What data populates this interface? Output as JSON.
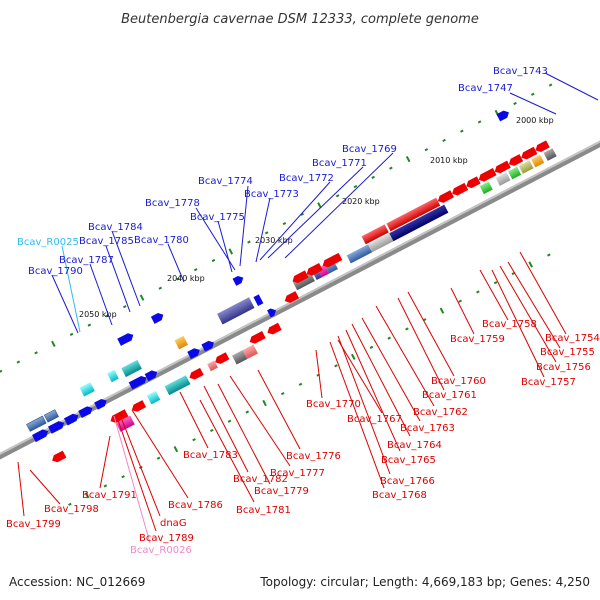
{
  "title": "Beutenbergia cavernae DSM 12333, complete genome",
  "footer": {
    "accession": "Accession: NC_012669",
    "summary": "Topology: circular; Length: 4,669,183 bp; Genes: 4,250"
  },
  "scale_labels": [
    {
      "id": "2000",
      "text": "2000 kbp"
    },
    {
      "id": "2010",
      "text": "2010 kbp"
    },
    {
      "id": "2020",
      "text": "2020 kbp"
    },
    {
      "id": "2030",
      "text": "2030 kbp"
    },
    {
      "id": "2040",
      "text": "2040 kbp"
    },
    {
      "id": "2050",
      "text": "2050 kbp"
    }
  ],
  "gene_labels_top": [
    {
      "id": "bcav1743",
      "text": "Bcav_1743",
      "color": "#1a1ad2"
    },
    {
      "id": "bcav1747",
      "text": "Bcav_1747",
      "color": "#1a1ad2"
    },
    {
      "id": "bcav1769",
      "text": "Bcav_1769",
      "color": "#1a1ad2"
    },
    {
      "id": "bcav1771",
      "text": "Bcav_1771",
      "color": "#1a1ad2"
    },
    {
      "id": "bcav1772",
      "text": "Bcav_1772",
      "color": "#1a1ad2"
    },
    {
      "id": "bcav1774",
      "text": "Bcav_1774",
      "color": "#1a1ad2"
    },
    {
      "id": "bcav1773",
      "text": "Bcav_1773",
      "color": "#1a1ad2"
    },
    {
      "id": "bcav1778",
      "text": "Bcav_1778",
      "color": "#1a1ad2"
    },
    {
      "id": "bcav1775",
      "text": "Bcav_1775",
      "color": "#1a1ad2"
    },
    {
      "id": "bcav1784",
      "text": "Bcav_1784",
      "color": "#1a1ad2"
    },
    {
      "id": "bcavR0025",
      "text": "Bcav_R0025",
      "color": "#33bbee"
    },
    {
      "id": "bcav1785",
      "text": "Bcav_1785",
      "color": "#1a1ad2"
    },
    {
      "id": "bcav1780",
      "text": "Bcav_1780",
      "color": "#1a1ad2"
    },
    {
      "id": "bcav1787",
      "text": "Bcav_1787",
      "color": "#1a1ad2"
    },
    {
      "id": "bcav1790",
      "text": "Bcav_1790",
      "color": "#1a1ad2"
    }
  ],
  "gene_labels_bottom": [
    {
      "id": "bcav1758",
      "text": "Bcav_1758",
      "color": "#dd0000"
    },
    {
      "id": "bcav1754",
      "text": "Bcav_1754",
      "color": "#dd0000"
    },
    {
      "id": "bcav1759",
      "text": "Bcav_1759",
      "color": "#dd0000"
    },
    {
      "id": "bcav1755",
      "text": "Bcav_1755",
      "color": "#dd0000"
    },
    {
      "id": "bcav1756",
      "text": "Bcav_1756",
      "color": "#dd0000"
    },
    {
      "id": "bcav1757",
      "text": "Bcav_1757",
      "color": "#dd0000"
    },
    {
      "id": "bcav1760",
      "text": "Bcav_1760",
      "color": "#dd0000"
    },
    {
      "id": "bcav1761",
      "text": "Bcav_1761",
      "color": "#dd0000"
    },
    {
      "id": "bcav1770",
      "text": "Bcav_1770",
      "color": "#dd0000"
    },
    {
      "id": "bcav1762",
      "text": "Bcav_1762",
      "color": "#dd0000"
    },
    {
      "id": "bcav1767",
      "text": "Bcav_1767",
      "color": "#dd0000"
    },
    {
      "id": "bcav1763",
      "text": "Bcav_1763",
      "color": "#dd0000"
    },
    {
      "id": "bcav1764",
      "text": "Bcav_1764",
      "color": "#dd0000"
    },
    {
      "id": "bcav1776",
      "text": "Bcav_1776",
      "color": "#dd0000"
    },
    {
      "id": "bcav1765",
      "text": "Bcav_1765",
      "color": "#dd0000"
    },
    {
      "id": "bcav1783",
      "text": "Bcav_1783",
      "color": "#dd0000"
    },
    {
      "id": "bcav1777",
      "text": "Bcav_1777",
      "color": "#dd0000"
    },
    {
      "id": "bcav1766",
      "text": "Bcav_1766",
      "color": "#dd0000"
    },
    {
      "id": "bcav1782",
      "text": "Bcav_1782",
      "color": "#dd0000"
    },
    {
      "id": "bcav1779",
      "text": "Bcav_1779",
      "color": "#dd0000"
    },
    {
      "id": "bcav1768",
      "text": "Bcav_1768",
      "color": "#dd0000"
    },
    {
      "id": "bcav1791",
      "text": "Bcav_1791",
      "color": "#dd0000"
    },
    {
      "id": "bcav1786",
      "text": "Bcav_1786",
      "color": "#dd0000"
    },
    {
      "id": "bcav1798",
      "text": "Bcav_1798",
      "color": "#dd0000"
    },
    {
      "id": "bcav1781",
      "text": "Bcav_1781",
      "color": "#dd0000"
    },
    {
      "id": "dnag",
      "text": "dnaG",
      "color": "#dd0000"
    },
    {
      "id": "bcav1799",
      "text": "Bcav_1799",
      "color": "#dd0000"
    },
    {
      "id": "bcav1789",
      "text": "Bcav_1789",
      "color": "#dd0000"
    },
    {
      "id": "bcavR0026",
      "text": "Bcav_R0026",
      "color": "#ee88cc"
    }
  ],
  "colors": {
    "forward_strand": "#0a0ae6",
    "reverse_strand": "#ee0000",
    "backbone": "#8a8a8a",
    "tick": "#1e8a1e"
  }
}
